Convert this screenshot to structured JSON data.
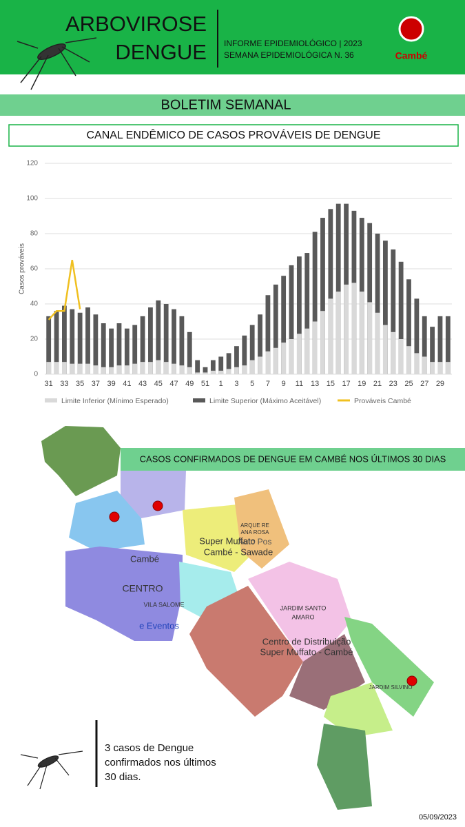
{
  "header": {
    "title_line1": "ARBOVIROSE",
    "title_line2": "DENGUE",
    "info_line1": "INFORME EPIDEMIOLÓGICO | 2023",
    "info_line2": "SEMANA EPIDEMIOLÓGICA  N. 36",
    "logo": "Cambé"
  },
  "banner": "BOLETIM SEMANAL",
  "chart_data": {
    "type": "bar",
    "title": "CANAL ENDÊMICO DE CASOS PROVÁVEIS DE DENGUE",
    "ylabel": "Casos prováveis",
    "categories": [
      "31",
      null,
      "33",
      null,
      "35",
      null,
      "37",
      null,
      "39",
      null,
      "41",
      null,
      "43",
      null,
      "45",
      null,
      "47",
      null,
      "49",
      null,
      "51",
      null,
      "1",
      null,
      "3",
      null,
      "5",
      null,
      "7",
      null,
      "9",
      null,
      "11",
      null,
      "13",
      null,
      "15",
      null,
      "17",
      null,
      "19",
      null,
      "21",
      null,
      "23",
      null,
      "25",
      null,
      "27",
      null,
      "29",
      null
    ],
    "ylim": [
      0,
      120
    ],
    "yticks": [
      0,
      20,
      40,
      60,
      80,
      100,
      120
    ],
    "grid": true,
    "series": [
      {
        "name": "Limite Superior (Máximo Aceitável)",
        "color": "#595959",
        "values": [
          33,
          36,
          39,
          37,
          35,
          38,
          34,
          29,
          26,
          29,
          26,
          28,
          33,
          38,
          42,
          40,
          37,
          33,
          24,
          8,
          4,
          8,
          10,
          12,
          16,
          22,
          28,
          34,
          45,
          51,
          56,
          62,
          67,
          69,
          81,
          89,
          94,
          97,
          97,
          93,
          89,
          86,
          80,
          76,
          71,
          64,
          54,
          43,
          33,
          27,
          33,
          33
        ]
      },
      {
        "name": "Limite Inferior (Mínimo Esperado)",
        "color": "#d9d9d9",
        "values": [
          7,
          7,
          7,
          6,
          6,
          6,
          5,
          4,
          4,
          5,
          5,
          6,
          7,
          7,
          8,
          7,
          6,
          5,
          4,
          1,
          1,
          2,
          2,
          3,
          4,
          5,
          8,
          10,
          13,
          15,
          18,
          20,
          23,
          26,
          30,
          36,
          43,
          47,
          51,
          52,
          47,
          41,
          35,
          28,
          24,
          20,
          16,
          12,
          10,
          7,
          7,
          7
        ]
      },
      {
        "name": "Prováveis Cambé",
        "type": "line",
        "color": "#f0c020",
        "values": [
          31,
          36,
          36,
          65,
          37,
          null,
          null,
          null,
          null,
          null,
          null,
          null,
          null,
          null,
          null,
          null,
          null,
          null,
          null,
          null,
          null,
          null,
          null,
          null,
          null,
          null,
          null,
          null,
          null,
          null,
          null,
          null,
          null,
          null,
          null,
          null,
          null,
          null,
          null,
          null,
          null,
          null,
          null,
          null,
          null,
          null,
          null,
          null,
          null,
          null,
          null,
          null
        ]
      }
    ],
    "legend_order": [
      1,
      0,
      2
    ]
  },
  "map": {
    "title": "CASOS CONFIRMADOS DE DENGUE EM CAMBÉ NOS ÚLTIMOS 30 DIAS",
    "labels": [
      "Cambé",
      "CENTRO",
      "VILA SALOME",
      "e Eventos",
      "Super Muffato",
      "Cambé - Sawade",
      "ARQUE RE",
      "ANA ROSA",
      "Auto Pos",
      "JARDIM SANTO",
      "AMARO",
      "Centro de Distribuição",
      "Super Muffato - Cambé",
      "JARDIM SILVINO"
    ]
  },
  "footer": {
    "note_line1": "3 casos de Dengue",
    "note_line2": "confirmados nos últimos",
    "note_line3": "30 dias.",
    "date": "05/09/2023"
  }
}
